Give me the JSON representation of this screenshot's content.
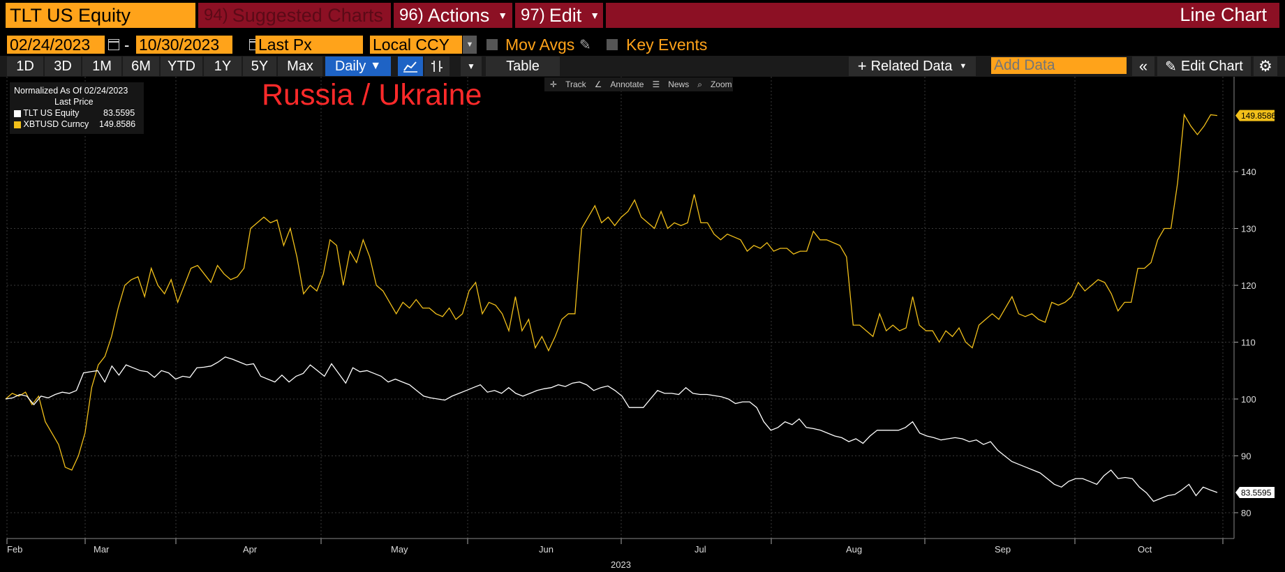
{
  "header": {
    "security": "TLT US Equity",
    "suggested": {
      "num": "94)",
      "label": "Suggested Charts"
    },
    "actions": {
      "num": "96)",
      "label": "Actions"
    },
    "edit": {
      "num": "97)",
      "label": "Edit"
    },
    "chart_type": "Line Chart"
  },
  "controls": {
    "start_date": "02/24/2023",
    "date_sep": "-",
    "end_date": "10/30/2023",
    "field": "Last Px",
    "currency": "Local CCY",
    "mov_avgs": "Mov Avgs",
    "key_events": "Key Events"
  },
  "toolbar": {
    "periods": [
      "1D",
      "3D",
      "1M",
      "6M",
      "YTD",
      "1Y",
      "5Y",
      "Max"
    ],
    "frequency": "Daily",
    "table": "Table",
    "related_data": "Related Data",
    "add_data_placeholder": "Add Data",
    "edit_chart": "Edit Chart"
  },
  "subtools": [
    "Track",
    "Annotate",
    "News",
    "Zoom"
  ],
  "legend": {
    "header": "Normalized As Of 02/24/2023",
    "subheader": "Last Price",
    "items": [
      {
        "name": "TLT US Equity",
        "value": "83.5595",
        "color": "#ffffff"
      },
      {
        "name": "XBTUSD Curncy",
        "value": "149.8586",
        "color": "#f2c01a"
      }
    ]
  },
  "annotation": "Russia / Ukraine",
  "chart_data": {
    "type": "line",
    "title": "",
    "xlabel": "2023",
    "ylabel": "",
    "ylim": [
      75,
      155
    ],
    "yticks": [
      80,
      90,
      100,
      110,
      120,
      130,
      140
    ],
    "xmonths": [
      "Feb",
      "Mar",
      "Apr",
      "May",
      "Jun",
      "Jul",
      "Aug",
      "Sep",
      "Oct"
    ],
    "xyear": "2023",
    "series": [
      {
        "name": "XBTUSD Curncy",
        "color": "#f2c01a",
        "last_label": "149.8586",
        "values": [
          100,
          101,
          100.5,
          101.2,
          99,
          100.5,
          96,
          94,
          92,
          88,
          87.5,
          90,
          94,
          102,
          106,
          107.5,
          111,
          116,
          120,
          121,
          121.5,
          118,
          123,
          120,
          118.5,
          121,
          117,
          120,
          123,
          123.5,
          122,
          120.5,
          123.5,
          122,
          121,
          121.5,
          123,
          130,
          131,
          132,
          131,
          131.5,
          127,
          130,
          125,
          118.5,
          120,
          119,
          122,
          128,
          127,
          120,
          126,
          124,
          128,
          125,
          120,
          119,
          117,
          115,
          117,
          116,
          117.5,
          116,
          116,
          115,
          114.5,
          116,
          114,
          115,
          119,
          120.5,
          115,
          117,
          116.5,
          115,
          112,
          118,
          112,
          114,
          109,
          111,
          108.5,
          111,
          114,
          115,
          115,
          130,
          132,
          134,
          131,
          132,
          130.5,
          132,
          133,
          135,
          132,
          131,
          130,
          133,
          130,
          131,
          130.5,
          131,
          136,
          131,
          131,
          129,
          128,
          129,
          128.5,
          128,
          126,
          127,
          126.5,
          127.5,
          126,
          126.5,
          126.5,
          125.5,
          126,
          126,
          129.5,
          128,
          128,
          127.5,
          127,
          125,
          113,
          113,
          112,
          111,
          115,
          112,
          113,
          112,
          112.5,
          118,
          113,
          112,
          112,
          110,
          112,
          111,
          112.5,
          110,
          109,
          113,
          114,
          115,
          114,
          116,
          118,
          115,
          114.5,
          115,
          114,
          113.5,
          117,
          116.5,
          117,
          118,
          120.5,
          119,
          120,
          121,
          120.5,
          118.5,
          115.5,
          117,
          117,
          123,
          123,
          124,
          128,
          130,
          130,
          138,
          150,
          148,
          146.5,
          148,
          150,
          149.86
        ]
      },
      {
        "name": "TLT US Equity",
        "color": "#ffffff",
        "last_label": "83.5595",
        "values": [
          100,
          100.2,
          100.8,
          100.5,
          99,
          100.5,
          100.2,
          100.8,
          101.2,
          101,
          101.5,
          104.6,
          104.8,
          105,
          103,
          105.8,
          104.2,
          106,
          105.5,
          105,
          104.8,
          103.8,
          105,
          104.6,
          103.5,
          104,
          103.8,
          105.5,
          105.6,
          105.8,
          106.5,
          107.4,
          107,
          106.5,
          106,
          106.2,
          104,
          103.5,
          103,
          104.2,
          103,
          104,
          104.5,
          106,
          105,
          104,
          106.2,
          104.5,
          102.8,
          105.5,
          104.8,
          105,
          104.5,
          104,
          103,
          103.5,
          103,
          102.5,
          101.5,
          100.5,
          100.2,
          100,
          99.8,
          100.5,
          101,
          101.5,
          102,
          102.5,
          101.2,
          101.5,
          101,
          102,
          101,
          100.5,
          101,
          101.5,
          101.8,
          102,
          102.5,
          102.2,
          102.8,
          103,
          102.5,
          101.5,
          102,
          102.3,
          101.5,
          100.5,
          98.5,
          98.5,
          98.5,
          100,
          101.5,
          101,
          101,
          100.8,
          102,
          101,
          100.8,
          100.8,
          100.6,
          100.4,
          100,
          99.2,
          99.5,
          99.5,
          98.5,
          96,
          94.5,
          95,
          96,
          95.5,
          96.5,
          95,
          94.8,
          94.5,
          94,
          93.5,
          93.2,
          92.5,
          93,
          92.2,
          93.5,
          94.5,
          94.5,
          94.5,
          94.5,
          95,
          96,
          94,
          93.5,
          93.2,
          92.8,
          93,
          93.2,
          93,
          92.5,
          92.8,
          92,
          92.5,
          91,
          90,
          89,
          88.5,
          88,
          87.5,
          87,
          86,
          85,
          84.5,
          85.5,
          86,
          86,
          85.5,
          85,
          86.5,
          87.5,
          86,
          86.2,
          86,
          84.5,
          83.5,
          82,
          82.5,
          83,
          83.2,
          84,
          85,
          83,
          84.5,
          84,
          83.56
        ]
      }
    ]
  }
}
